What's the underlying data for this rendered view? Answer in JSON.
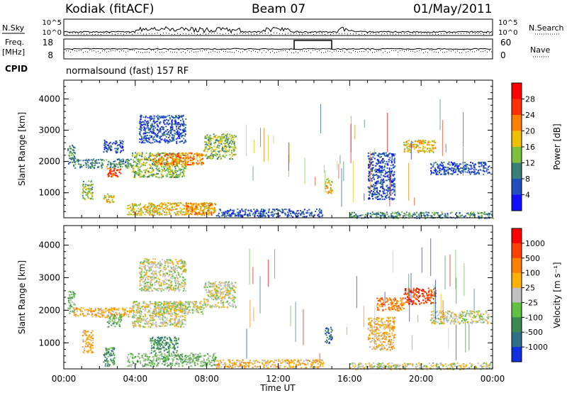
{
  "header": {
    "station": "Kodiak (fitACF)",
    "beam": "Beam 07",
    "date": "01/May/2011"
  },
  "params": {
    "nsky_label": "N.Sky",
    "nsearch_label": "N.Search",
    "ticks_left_top": [
      "10^5",
      "10^0"
    ],
    "ticks_right_top": [
      "10^5",
      "10^0"
    ],
    "freq_label": "Freq.",
    "freq_unit": "[MHz]",
    "freq_ticks": [
      "18",
      "8"
    ],
    "nave_label": "Nave",
    "nave_ticks": [
      "60",
      "0"
    ],
    "cpid_label": "CPID",
    "cpid_value": "normalsound (fast) 157 RF"
  },
  "chart_data": [
    {
      "type": "heatmap",
      "quantity": "power",
      "ylabel": "Slant Range [km]",
      "xlabel": "Time UT",
      "x_ticks": [
        "00:00",
        "04:00",
        "08:00",
        "12:00",
        "16:00",
        "20:00",
        "00:00"
      ],
      "y_ticks": [
        1000,
        2000,
        3000,
        4000
      ],
      "ylim": [
        200,
        4600
      ],
      "xlim_hours": [
        0,
        24
      ],
      "colorbar": {
        "label": "Power [dB]",
        "ticks": [
          "4",
          "8",
          "12",
          "16",
          "20",
          "24",
          "28"
        ],
        "colors": [
          "#1010ff",
          "#2050c0",
          "#3a7e78",
          "#7cc040",
          "#f0c000",
          "#ff8000",
          "#ff3000",
          "#ff0000"
        ]
      },
      "regions": [
        {
          "t0": 0.2,
          "t1": 0.6,
          "r0": 1900,
          "r1": 2600,
          "level": 2
        },
        {
          "t0": 0.5,
          "t1": 3.8,
          "r0": 1800,
          "r1": 2100,
          "level": 2
        },
        {
          "t0": 2.4,
          "t1": 3.2,
          "r0": 1500,
          "r1": 1800,
          "level": 6
        },
        {
          "t0": 1.0,
          "t1": 1.6,
          "r0": 800,
          "r1": 1400,
          "level": 3
        },
        {
          "t0": 2.2,
          "t1": 2.8,
          "r0": 700,
          "r1": 1000,
          "level": 4
        },
        {
          "t0": 3.8,
          "t1": 6.8,
          "r0": 1500,
          "r1": 2300,
          "level": 3
        },
        {
          "t0": 5.0,
          "t1": 7.8,
          "r0": 1900,
          "r1": 2300,
          "level": 5
        },
        {
          "t0": 7.8,
          "t1": 9.6,
          "r0": 2100,
          "r1": 2900,
          "level": 3
        },
        {
          "t0": 4.2,
          "t1": 6.8,
          "r0": 2600,
          "r1": 3500,
          "level": 1
        },
        {
          "t0": 2.2,
          "t1": 3.3,
          "r0": 2300,
          "r1": 2700,
          "level": 1
        },
        {
          "t0": 3.5,
          "t1": 8.5,
          "r0": 300,
          "r1": 700,
          "level": 4
        },
        {
          "t0": 6.8,
          "t1": 8.3,
          "r0": 300,
          "r1": 700,
          "level": 5
        },
        {
          "t0": 8.5,
          "t1": 14.5,
          "r0": 250,
          "r1": 500,
          "level": 1
        },
        {
          "t0": 14.6,
          "t1": 15.0,
          "r0": 1000,
          "r1": 1500,
          "level": 4
        },
        {
          "t0": 17.0,
          "t1": 18.5,
          "r0": 800,
          "r1": 2300,
          "level": 1
        },
        {
          "t0": 19.0,
          "t1": 20.8,
          "r0": 2300,
          "r1": 2700,
          "level": 4
        },
        {
          "t0": 20.5,
          "t1": 23.8,
          "r0": 1600,
          "r1": 2000,
          "level": 1
        },
        {
          "t0": 16.0,
          "t1": 24.0,
          "r0": 200,
          "r1": 400,
          "level": 2
        }
      ]
    },
    {
      "type": "heatmap",
      "quantity": "velocity",
      "ylabel": "Slant Range [km]",
      "xlabel": "Time UT",
      "x_ticks": [
        "00:00",
        "04:00",
        "08:00",
        "12:00",
        "16:00",
        "20:00",
        "00:00"
      ],
      "y_ticks": [
        1000,
        2000,
        3000,
        4000
      ],
      "ylim": [
        200,
        4600
      ],
      "xlim_hours": [
        0,
        24
      ],
      "colorbar": {
        "label": "Velocity [m s⁻¹]",
        "ticks": [
          "1000",
          "500",
          "100",
          "25",
          "-25",
          "-100",
          "-500",
          "-1000"
        ],
        "colors": [
          "#1030e0",
          "#2f6f88",
          "#3d8a50",
          "#60c040",
          "#c0c0c0",
          "#ffb000",
          "#ff8000",
          "#ff4000",
          "#ff0000"
        ]
      },
      "regions": [
        {
          "t0": 0.2,
          "t1": 0.6,
          "r0": 1900,
          "r1": 2600,
          "level": 3
        },
        {
          "t0": 0.5,
          "t1": 3.8,
          "r0": 1800,
          "r1": 2100,
          "level": 5
        },
        {
          "t0": 2.4,
          "t1": 3.2,
          "r0": 1500,
          "r1": 1900,
          "level": 3
        },
        {
          "t0": 1.0,
          "t1": 1.6,
          "r0": 700,
          "r1": 1400,
          "level": 5
        },
        {
          "t0": 2.2,
          "t1": 2.8,
          "r0": 300,
          "r1": 900,
          "level": 2
        },
        {
          "t0": 3.8,
          "t1": 6.8,
          "r0": 1500,
          "r1": 2300,
          "level": 4
        },
        {
          "t0": 5.0,
          "t1": 7.8,
          "r0": 1900,
          "r1": 2300,
          "level": 4
        },
        {
          "t0": 7.8,
          "t1": 9.6,
          "r0": 2100,
          "r1": 2900,
          "level": 4
        },
        {
          "t0": 4.2,
          "t1": 6.8,
          "r0": 2600,
          "r1": 3600,
          "level": 4
        },
        {
          "t0": 4.8,
          "t1": 6.4,
          "r0": 700,
          "r1": 1200,
          "level": 2
        },
        {
          "t0": 3.5,
          "t1": 8.5,
          "r0": 300,
          "r1": 700,
          "level": 3
        },
        {
          "t0": 8.5,
          "t1": 14.5,
          "r0": 250,
          "r1": 500,
          "level": 5
        },
        {
          "t0": 14.6,
          "t1": 15.0,
          "r0": 1000,
          "r1": 1500,
          "level": 1
        },
        {
          "t0": 17.5,
          "t1": 19.0,
          "r0": 2000,
          "r1": 2400,
          "level": 6
        },
        {
          "t0": 19.0,
          "t1": 20.8,
          "r0": 2200,
          "r1": 2700,
          "level": 7
        },
        {
          "t0": 17.0,
          "t1": 18.5,
          "r0": 800,
          "r1": 1800,
          "level": 5
        },
        {
          "t0": 20.5,
          "t1": 23.8,
          "r0": 1600,
          "r1": 2000,
          "level": 4
        },
        {
          "t0": 16.0,
          "t1": 24.0,
          "r0": 200,
          "r1": 400,
          "level": 4
        }
      ]
    }
  ]
}
